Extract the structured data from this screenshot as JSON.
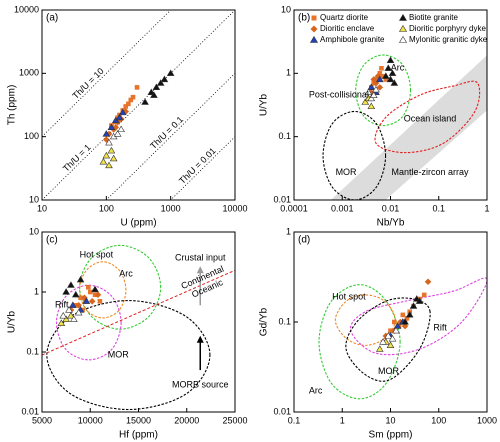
{
  "chart_data": [
    {
      "type": "scatter",
      "panel": "(a)",
      "xlabel": "U (ppm)",
      "ylabel": "Th (ppm)",
      "xscale": "log",
      "yscale": "log",
      "xlim": [
        10,
        10000
      ],
      "ylim": [
        10,
        10000
      ],
      "xticks": [
        10,
        100,
        1000,
        10000
      ],
      "yticks": [
        10,
        100,
        1000,
        10000
      ],
      "ratio_lines": [
        {
          "label": "Th/U = 10",
          "ratio": 10,
          "label_x": 60
        },
        {
          "label": "Th/U = 1",
          "ratio": 1,
          "label_x": 40
        },
        {
          "label": "Th/U = 0.1",
          "ratio": 0.1,
          "label_x": 1000
        },
        {
          "label": "Th/U = 0.01",
          "ratio": 0.01,
          "label_x": 3000
        }
      ],
      "series": [
        {
          "color": "#e8742c",
          "marker": "square",
          "x": [
            120,
            150,
            180,
            200,
            240,
            260,
            300,
            160,
            140,
            220
          ],
          "values": [
            150,
            200,
            260,
            300,
            380,
            420,
            600,
            220,
            170,
            330
          ]
        },
        {
          "color": "#d7651e",
          "marker": "diamond",
          "x": [
            100,
            130,
            150,
            170,
            200,
            110,
            140
          ],
          "values": [
            90,
            130,
            170,
            190,
            250,
            110,
            140
          ]
        },
        {
          "color": "#2340b8",
          "marker": "triangle",
          "x": [
            100,
            120,
            140,
            160,
            180
          ],
          "values": [
            110,
            140,
            180,
            200,
            240
          ]
        },
        {
          "color": "#111111",
          "marker": "triangle",
          "x": [
            400,
            500,
            600,
            700,
            800,
            1000,
            550
          ],
          "values": [
            350,
            500,
            600,
            700,
            800,
            1000,
            450
          ]
        },
        {
          "color": "#f2e24a",
          "marker": "triangle",
          "x": [
            90,
            100,
            110,
            120,
            130
          ],
          "values": [
            40,
            50,
            35,
            60,
            45
          ]
        },
        {
          "color": "#ffffff",
          "marker": "triangle",
          "x": [
            110,
            130,
            150,
            170
          ],
          "values": [
            80,
            100,
            110,
            130
          ]
        }
      ]
    },
    {
      "type": "scatter",
      "panel": "(b)",
      "xlabel": "Nb/Yb",
      "ylabel": "U/Yb",
      "xscale": "log",
      "yscale": "log",
      "xlim": [
        0.0001,
        1
      ],
      "ylim": [
        0.01,
        10
      ],
      "xticks": [
        0.0001,
        0.001,
        0.01,
        0.1,
        1
      ],
      "yticks": [
        0.01,
        0.1,
        1,
        10
      ],
      "bands": [
        {
          "color": "#dcdcdc",
          "x": [
            0.00058,
            1,
            1,
            0.0079
          ],
          "y": [
            0.01,
            1.93,
            0.26,
            0.01
          ]
        }
      ],
      "regions": [
        {
          "color": "#33cc33",
          "x": [
            0.026,
            0.018,
            0.0071,
            0.0028,
            0.0019,
            0.0028,
            0.0071,
            0.018
          ],
          "y": [
            0.54,
            1.35,
            1.95,
            1.35,
            0.54,
            0.21,
            0.15,
            0.21
          ]
        },
        {
          "color": "#e02020",
          "x": [
            0.63,
            0.2,
            0.04,
            0.0079,
            0.005,
            0.02,
            0.126,
            0.56
          ],
          "y": [
            0.71,
            0.63,
            0.45,
            0.2,
            0.079,
            0.056,
            0.079,
            0.25
          ]
        },
        {
          "color": "#000000",
          "x": [
            0.0079,
            0.0051,
            0.0018,
            0.00062,
            0.0004,
            0.00062,
            0.0018,
            0.0051
          ],
          "y": [
            0.05,
            0.16,
            0.25,
            0.16,
            0.05,
            0.016,
            0.01,
            0.016
          ]
        }
      ],
      "annotations": [
        {
          "text": "Arc",
          "x": 0.014,
          "y": 1.2,
          "color": "#33cc33"
        },
        {
          "text": "Post-collisional",
          "x": 0.00085,
          "y": 0.45,
          "color": "#000000"
        },
        {
          "text": "Ocean island",
          "x": 0.066,
          "y": 0.19,
          "color": "#e02020"
        },
        {
          "text": "MOR",
          "x": 0.0012,
          "y": 0.027,
          "color": "#000000"
        },
        {
          "text": "Mantle-zircon array",
          "x": 0.066,
          "y": 0.027,
          "color": "#000000"
        }
      ],
      "series": [
        {
          "name": "Quartz diorite",
          "color": "#e8742c",
          "marker": "square",
          "x": [
            0.004,
            0.005,
            0.006,
            0.007,
            0.005,
            0.0045,
            0.0065,
            0.008
          ],
          "values": [
            0.6,
            0.8,
            1.0,
            0.9,
            0.5,
            0.7,
            1.2,
            0.8
          ]
        },
        {
          "name": "Dioritic enclave",
          "color": "#d7651e",
          "marker": "diamond",
          "x": [
            0.004,
            0.005,
            0.006,
            0.0055,
            0.0045
          ],
          "values": [
            0.5,
            0.7,
            0.6,
            0.9,
            0.8
          ]
        },
        {
          "name": "Amphibole granite",
          "color": "#2340b8",
          "marker": "triangle",
          "x": [
            0.004,
            0.005,
            0.006
          ],
          "values": [
            0.6,
            0.5,
            0.8
          ]
        },
        {
          "name": "Biotite granite",
          "color": "#111111",
          "marker": "triangle",
          "x": [
            0.008,
            0.009,
            0.01,
            0.011,
            0.012,
            0.01
          ],
          "values": [
            0.9,
            1.2,
            1.6,
            1.0,
            0.7,
            0.8
          ]
        },
        {
          "name": "Dioritic porphyry dyke",
          "color": "#f2e24a",
          "marker": "triangle",
          "x": [
            0.003,
            0.0035,
            0.004
          ],
          "values": [
            0.35,
            0.4,
            0.3
          ]
        },
        {
          "name": "Mylonitic granitic dyke",
          "color": "#ffffff",
          "marker": "triangle",
          "x": [
            0.0035,
            0.004,
            0.005,
            0.0045
          ],
          "values": [
            0.5,
            0.4,
            0.55,
            0.45
          ]
        }
      ]
    },
    {
      "type": "scatter",
      "panel": "(c)",
      "xlabel": "Hf (ppm)",
      "ylabel": "U/Yb",
      "xscale": "linear",
      "yscale": "log",
      "xlim": [
        5000,
        25000
      ],
      "ylim": [
        0.01,
        10
      ],
      "xticks": [
        5000,
        10000,
        15000,
        20000,
        25000
      ],
      "yticks": [
        0.01,
        0.1,
        1,
        10
      ],
      "regions": [
        {
          "color": "#33cc33",
          "x": [
            17300,
            16070,
            13100,
            10130,
            8900,
            10130,
            13100,
            16070
          ],
          "y": [
            1.2,
            3.7,
            6,
            3.7,
            1.2,
            0.39,
            0.24,
            0.39
          ]
        },
        {
          "color": "#f08a24",
          "x": [
            13700,
            13000,
            11300,
            9600,
            8900,
            9600,
            11300,
            13000
          ],
          "y": [
            1.08,
            2.3,
            3.2,
            2.3,
            1.08,
            0.5,
            0.37,
            0.5
          ]
        },
        {
          "color": "#e040e0",
          "x": [
            13200,
            12220,
            9850,
            7480,
            6500,
            7480,
            9850,
            12220
          ],
          "y": [
            0.31,
            0.85,
            1.3,
            0.85,
            0.31,
            0.11,
            0.074,
            0.11
          ]
        },
        {
          "color": "#000000",
          "x": [
            22400,
            19930,
            13950,
            7970,
            5500,
            7970,
            13950,
            19930
          ],
          "y": [
            0.089,
            0.39,
            0.72,
            0.39,
            0.089,
            0.02,
            0.011,
            0.02
          ]
        }
      ],
      "divider": {
        "color": "#e02020",
        "x": [
          5000,
          25000
        ],
        "y": [
          0.089,
          2.3
        ],
        "labels": [
          "Continental",
          "Oceanic"
        ],
        "label_x": 21900
      },
      "arrows": [
        {
          "color": "#999999",
          "x": [
            21400,
            21400
          ],
          "y": [
            0.6,
            2.3
          ]
        },
        {
          "color": "#000000",
          "x": [
            21400,
            21400
          ],
          "y": [
            0.05,
            0.16
          ]
        }
      ],
      "annotations": [
        {
          "text": "Hot spot",
          "x": 10640,
          "y": 4.1,
          "color": "#f08a24"
        },
        {
          "text": "Arc",
          "x": 13700,
          "y": 2,
          "color": "#33cc33"
        },
        {
          "text": "Rift",
          "x": 7050,
          "y": 0.6,
          "color": "#e040e0"
        },
        {
          "text": "MOR",
          "x": 12900,
          "y": 0.089,
          "color": "#000000"
        },
        {
          "text": "Crustal input",
          "x": 21400,
          "y": 3.7,
          "color": "#000000"
        },
        {
          "text": "MORB source",
          "x": 21400,
          "y": 0.028,
          "color": "#000000"
        }
      ],
      "series": [
        {
          "color": "#e8742c",
          "marker": "square",
          "x": [
            8500,
            9000,
            9500,
            10000,
            10500,
            11000,
            9200,
            9800
          ],
          "values": [
            0.6,
            0.8,
            0.7,
            1.0,
            0.9,
            0.7,
            0.5,
            1.2
          ]
        },
        {
          "color": "#d7651e",
          "marker": "diamond",
          "x": [
            8000,
            8800,
            9400,
            10200,
            10800
          ],
          "values": [
            0.5,
            0.6,
            0.8,
            0.7,
            0.9
          ]
        },
        {
          "color": "#2340b8",
          "marker": "triangle",
          "x": [
            8200,
            9000,
            9600
          ],
          "values": [
            0.6,
            0.5,
            0.7
          ]
        },
        {
          "color": "#111111",
          "marker": "triangle",
          "x": [
            7500,
            8000,
            8500,
            9000,
            10500
          ],
          "values": [
            1.0,
            1.3,
            0.9,
            1.6,
            1.1
          ]
        },
        {
          "color": "#f2e24a",
          "marker": "triangle",
          "x": [
            7000,
            7500,
            8000
          ],
          "values": [
            0.3,
            0.35,
            0.4
          ]
        },
        {
          "color": "#ffffff",
          "marker": "triangle",
          "x": [
            7200,
            7800,
            8300,
            8800
          ],
          "values": [
            0.4,
            0.5,
            0.35,
            0.45
          ]
        }
      ]
    },
    {
      "type": "scatter",
      "panel": "(d)",
      "xlabel": "Sm (ppm)",
      "ylabel": "Gd/Yb",
      "xscale": "log",
      "yscale": "log",
      "xlim": [
        0.1,
        1000
      ],
      "ylim": [
        0.01,
        1
      ],
      "xticks": [
        0.1,
        1,
        10,
        100,
        1000
      ],
      "yticks": [
        0.01,
        0.1,
        1
      ],
      "regions": [
        {
          "color": "#33cc33",
          "x": [
            15.8,
            8.2,
            2.3,
            0.59,
            0.33,
            0.59,
            2.3,
            8.2
          ],
          "y": [
            0.06,
            0.17,
            0.26,
            0.17,
            0.06,
            0.021,
            0.014,
            0.021
          ]
        },
        {
          "color": "#f08a24",
          "x": [
            12.6,
            7.6,
            3.0,
            1.2,
            0.72,
            1.2,
            3.0,
            7.6
          ],
          "y": [
            0.105,
            0.17,
            0.2,
            0.17,
            0.105,
            0.066,
            0.055,
            0.066
          ]
        },
        {
          "color": "#e040e0",
          "x": [
            1000,
            200,
            20,
            3,
            1.5,
            5,
            40,
            300
          ],
          "y": [
            0.3,
            0.22,
            0.17,
            0.13,
            0.08,
            0.045,
            0.05,
            0.1
          ]
        },
        {
          "color": "#000000",
          "x": [
            66,
            30,
            8,
            2,
            1.2,
            3,
            10,
            40
          ],
          "y": [
            0.13,
            0.18,
            0.17,
            0.1,
            0.05,
            0.026,
            0.023,
            0.05
          ]
        }
      ],
      "annotations": [
        {
          "text": "Hot spot",
          "x": 1.37,
          "y": 0.19,
          "color": "#f08a24"
        },
        {
          "text": "Rift",
          "x": 107,
          "y": 0.086,
          "color": "#e070e0"
        },
        {
          "text": "MOR",
          "x": 9.1,
          "y": 0.028,
          "color": "#000000"
        },
        {
          "text": "Arc",
          "x": 0.28,
          "y": 0.017,
          "color": "#33cc33"
        }
      ],
      "series": [
        {
          "color": "#e8742c",
          "marker": "square",
          "x": [
            10,
            12,
            15,
            18,
            20,
            25,
            30,
            40,
            50,
            22
          ],
          "values": [
            0.08,
            0.1,
            0.09,
            0.12,
            0.1,
            0.13,
            0.15,
            0.18,
            0.2,
            0.11
          ]
        },
        {
          "color": "#d7651e",
          "marker": "diamond",
          "x": [
            8,
            12,
            16,
            20,
            60
          ],
          "values": [
            0.07,
            0.08,
            0.1,
            0.09,
            0.28
          ]
        },
        {
          "color": "#2340b8",
          "marker": "triangle",
          "x": [
            10,
            14,
            18
          ],
          "values": [
            0.07,
            0.09,
            0.1
          ]
        },
        {
          "color": "#111111",
          "marker": "triangle",
          "x": [
            20,
            25,
            30,
            35,
            40
          ],
          "values": [
            0.1,
            0.12,
            0.15,
            0.18,
            0.17
          ]
        },
        {
          "color": "#f2e24a",
          "marker": "triangle",
          "x": [
            6,
            8,
            10
          ],
          "values": [
            0.05,
            0.06,
            0.055
          ]
        },
        {
          "color": "#ffffff",
          "marker": "triangle",
          "x": [
            7,
            9,
            11,
            13
          ],
          "values": [
            0.06,
            0.07,
            0.065,
            0.08
          ]
        }
      ]
    }
  ]
}
